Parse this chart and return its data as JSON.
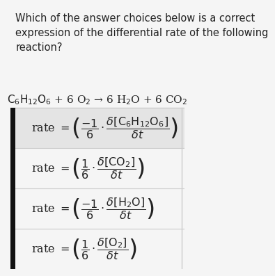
{
  "bg_color": "#f5f5f5",
  "title_text": "Which of the answer choices below is a correct\nexpression of the differential rate of the following\nreaction?",
  "reaction": "$\\mathrm{C_6H_{12}O_6}$ + 6 O$_2$ → 6 H$_2$O + 6 CO$_2$",
  "rows": [
    {
      "highlight": true,
      "formula": "rate $= \\left(\\dfrac{-1}{6} \\cdot \\dfrac{\\delta[\\mathrm{C_6H_{12}O_6}]}{\\delta t}\\right)$"
    },
    {
      "highlight": false,
      "formula": "rate $= \\left(\\dfrac{1}{6} \\cdot \\dfrac{\\delta[\\mathrm{CO_2}]}{\\delta t}\\right)$"
    },
    {
      "highlight": false,
      "formula": "rate $= \\left(\\dfrac{-1}{6} \\cdot \\dfrac{\\delta[\\mathrm{H_2O}]}{\\delta t}\\right)$"
    },
    {
      "highlight": false,
      "formula": "rate $= \\left(\\dfrac{1}{6} \\cdot \\dfrac{\\delta[\\mathrm{O_2}]}{\\delta t}\\right)$"
    }
  ],
  "title_fontsize": 10.5,
  "reaction_fontsize": 11,
  "formula_fontsize": 11.5,
  "text_color": "#222222",
  "divider_color": "#cccccc",
  "left_bar_color": "#111111",
  "selected_bg": "#e4e4e4"
}
